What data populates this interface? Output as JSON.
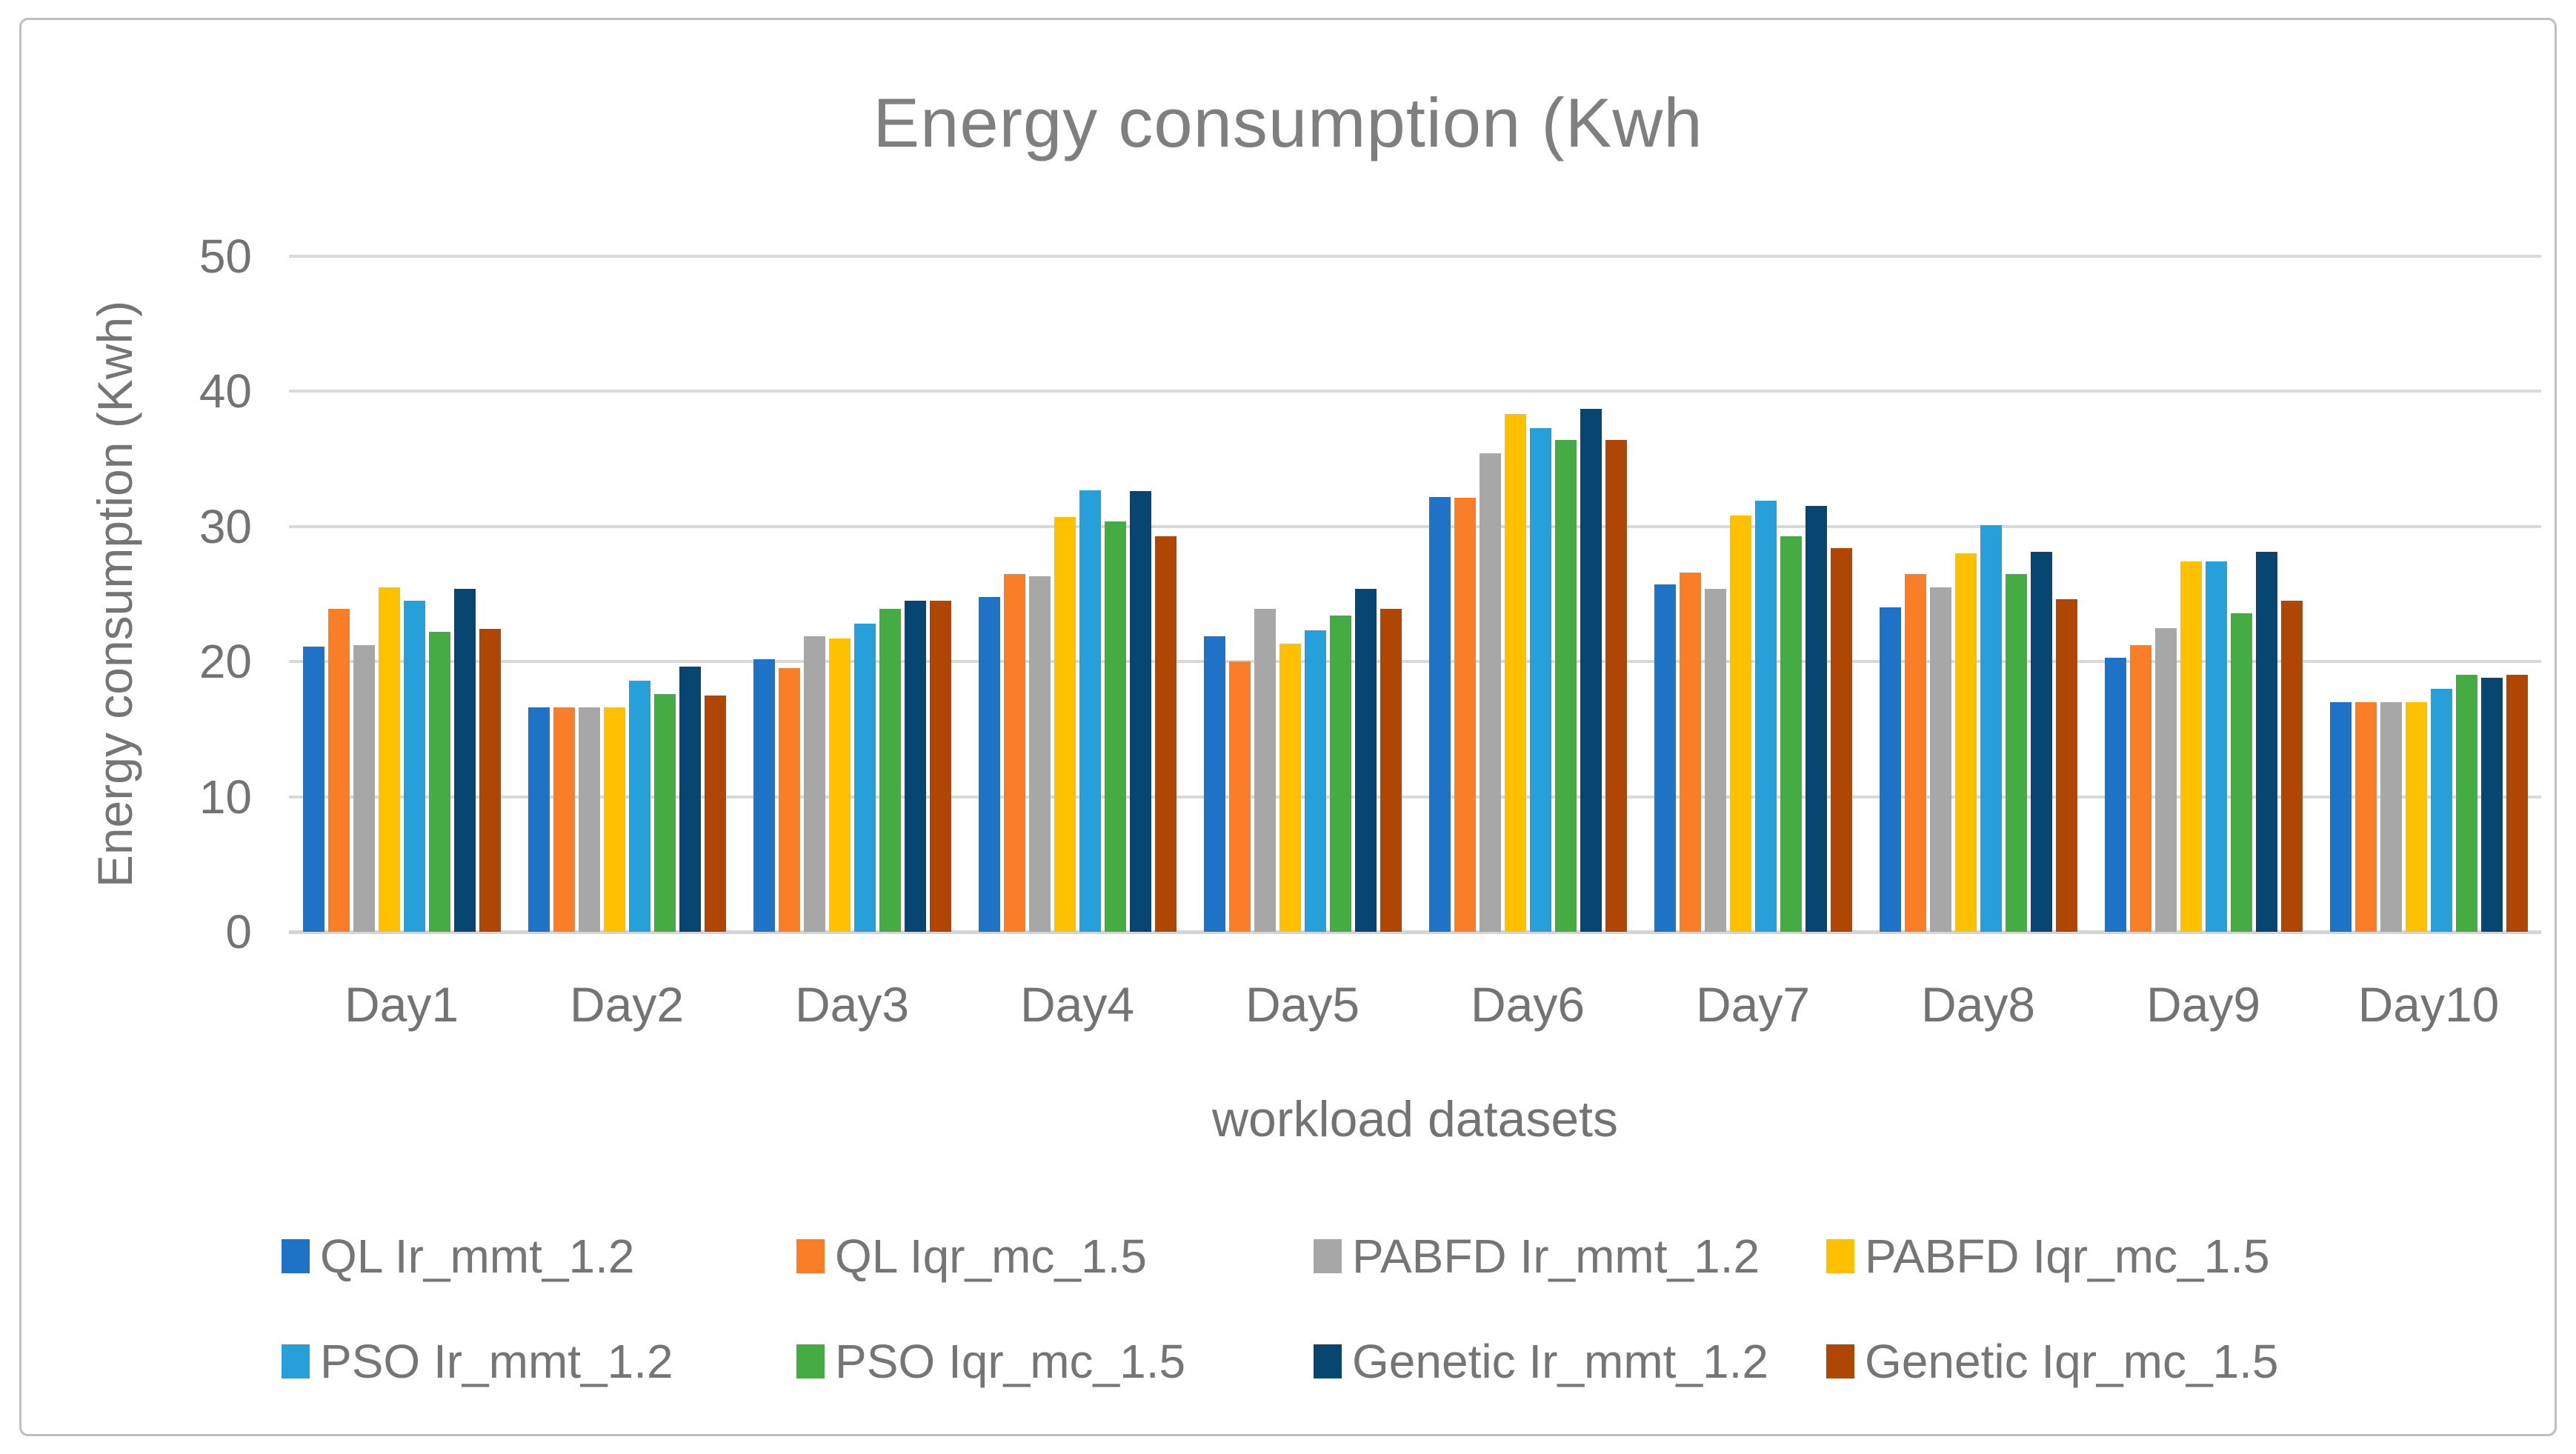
{
  "chart_data": {
    "type": "bar",
    "title": "Energy consumption (Kwh",
    "xlabel": "workload datasets",
    "ylabel": "Energy consumption (Kwh)",
    "ylim": [
      0,
      50
    ],
    "yticks": [
      0,
      10,
      20,
      30,
      40,
      50
    ],
    "grid": true,
    "legend_position": "bottom",
    "categories": [
      "Day1",
      "Day2",
      "Day3",
      "Day4",
      "Day5",
      "Day6",
      "Day7",
      "Day8",
      "Day9",
      "Day10"
    ],
    "series": [
      {
        "name": "QL Ir_mmt_1.2",
        "color": "#1E73C6",
        "values": [
          21.1,
          16.6,
          20.2,
          24.8,
          21.9,
          32.2,
          25.7,
          24.0,
          20.3,
          17.0
        ]
      },
      {
        "name": "QL Iqr_mc_1.5",
        "color": "#FA7D28",
        "values": [
          23.9,
          16.6,
          19.5,
          26.5,
          20.0,
          32.1,
          26.6,
          26.5,
          21.2,
          17.0
        ]
      },
      {
        "name": "PABFD Ir_mmt_1.2",
        "color": "#A7A7A7",
        "values": [
          21.2,
          16.6,
          21.9,
          26.3,
          23.9,
          35.4,
          25.4,
          25.5,
          22.5,
          17.0
        ]
      },
      {
        "name": "PABFD Iqr_mc_1.5",
        "color": "#FFC000",
        "values": [
          25.5,
          16.6,
          21.7,
          30.7,
          21.3,
          38.3,
          30.8,
          28.0,
          27.4,
          17.0
        ]
      },
      {
        "name": "PSO Ir_mmt_1.2",
        "color": "#27A0DA",
        "values": [
          24.5,
          18.6,
          22.8,
          32.7,
          22.3,
          37.3,
          31.9,
          30.1,
          27.4,
          18.0
        ]
      },
      {
        "name": "PSO Iqr_mc_1.5",
        "color": "#45AC44",
        "values": [
          22.2,
          17.6,
          23.9,
          30.4,
          23.4,
          36.4,
          29.3,
          26.5,
          23.6,
          19.0
        ]
      },
      {
        "name": "Genetic Ir_mmt_1.2",
        "color": "#084672",
        "values": [
          25.4,
          19.6,
          24.5,
          32.6,
          25.4,
          38.7,
          31.5,
          28.1,
          28.1,
          18.8
        ]
      },
      {
        "name": "Genetic Iqr_mc_1.5",
        "color": "#B04604",
        "values": [
          22.4,
          17.5,
          24.5,
          29.3,
          23.9,
          36.4,
          28.4,
          24.6,
          24.5,
          19.0
        ]
      }
    ]
  },
  "style_colors": {
    "gridline": "#D9D9D9",
    "axis_text": "#737373",
    "title_text": "#7F7F7F",
    "border": "#BEBEBE"
  }
}
